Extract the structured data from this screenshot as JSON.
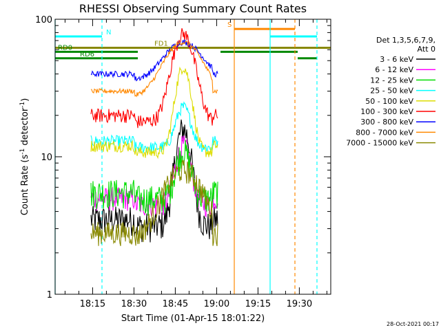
{
  "chart_data": {
    "type": "line",
    "title": "RHESSI Observing Summary Count Rates",
    "xlabel": "Start Time (01-Apr-15 18:01:22)",
    "ylabel_main": "Count Rate (s",
    "ylabel_sup1": "-1",
    "ylabel_mid": " detector",
    "ylabel_sup2": "-1",
    "ylabel_end": ")",
    "yscale": "log",
    "ylim": [
      1,
      100
    ],
    "xlim_minutes": [
      0,
      100
    ],
    "x_ticks": [
      {
        "label": "18:15",
        "m": 13.6
      },
      {
        "label": "18:30",
        "m": 28.6
      },
      {
        "label": "18:45",
        "m": 43.6
      },
      {
        "label": "19:00",
        "m": 58.6
      },
      {
        "label": "19:15",
        "m": 73.6
      },
      {
        "label": "19:30",
        "m": 88.6
      }
    ],
    "y_ticks": [
      {
        "label": "1",
        "v": 1
      },
      {
        "label": "10",
        "v": 10
      },
      {
        "label": "100",
        "v": 100
      }
    ],
    "legend_header": [
      "Det 1,3,5,6,7,9,",
      "Att 0"
    ],
    "series": [
      {
        "name": "3 - 6 keV",
        "color": "#000000",
        "base": 3.5,
        "peak": 16,
        "noise": 0.25
      },
      {
        "name": "6 - 12 keV",
        "color": "#ff00ff",
        "base": 5.0,
        "peak": 12,
        "noise": 0.2
      },
      {
        "name": "12 - 25 keV",
        "color": "#00dd00",
        "base": 5.5,
        "peak": 11,
        "noise": 0.25
      },
      {
        "name": "25 - 50 keV",
        "color": "#00ffff",
        "base": 13,
        "peak": 23,
        "noise": 0.1
      },
      {
        "name": "50 - 100 keV",
        "color": "#dddd00",
        "base": 12,
        "peak": 45,
        "noise": 0.1
      },
      {
        "name": "100 - 300 keV",
        "color": "#ff0000",
        "base": 20,
        "peak": 78,
        "noise": 0.12
      },
      {
        "name": "300 - 800 keV",
        "color": "#0000ff",
        "base": 40,
        "peak": 68,
        "noise": 0.05
      },
      {
        "name": "800 - 7000 keV",
        "color": "#ff8800",
        "base": 30,
        "peak": 68,
        "noise": 0.04
      },
      {
        "name": "7000 - 15000 keV",
        "color": "#888800",
        "base": 2.8,
        "peak": 8,
        "noise": 0.2
      }
    ],
    "flags": [
      {
        "label": "N",
        "color": "#00ffff",
        "segments": [
          [
            0,
            17
          ],
          [
            78,
            95
          ]
        ],
        "v": 75
      },
      {
        "label": "S",
        "color": "#ff8800",
        "segments": [
          [
            65,
            87
          ]
        ],
        "v": 85
      },
      {
        "label": "FD1",
        "color": "#888800",
        "segments": [
          [
            0,
            100
          ]
        ],
        "v": 62
      },
      {
        "label": "RD0",
        "color": "#008800",
        "segments": [
          [
            0,
            30
          ],
          [
            60,
            88
          ]
        ],
        "v": 58
      },
      {
        "label": "RD6",
        "color": "#008800",
        "segments": [
          [
            0,
            30
          ],
          [
            88,
            95
          ]
        ],
        "v": 52
      }
    ],
    "vlines": [
      {
        "m": 0,
        "color": "#00ffff",
        "dash": false
      },
      {
        "m": 17,
        "color": "#00ffff",
        "dash": true
      },
      {
        "m": 65,
        "color": "#ff8800",
        "dash": false
      },
      {
        "m": 78,
        "color": "#00ffff",
        "dash": false
      },
      {
        "m": 87,
        "color": "#ff8800",
        "dash": true
      },
      {
        "m": 95,
        "color": "#00ffff",
        "dash": true
      }
    ],
    "timestamp": "28-Oct-2021 00:17"
  }
}
